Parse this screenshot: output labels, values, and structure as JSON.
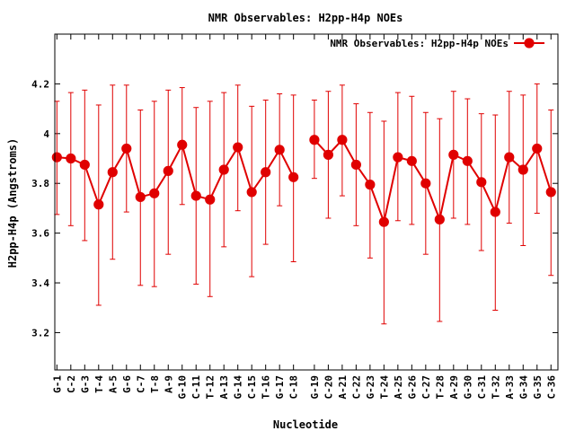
{
  "chart_data": {
    "type": "line",
    "title": "NMR Observables: H2pp-H4p NOEs",
    "xlabel": "Nucleotide",
    "ylabel": "H2pp-H4p (Angstroms)",
    "ylim": [
      3.05,
      4.4
    ],
    "yticks": [
      3.2,
      3.4,
      3.6,
      3.8,
      4,
      4.2
    ],
    "ytick_labels": [
      "3.2",
      "3.4",
      "3.6",
      "3.8",
      "4",
      "4.2"
    ],
    "xlim": [
      0.85,
      37.0
    ],
    "legend": {
      "label": "NMR Observables: H2pp-H4p NOEs",
      "position": "top-right"
    },
    "color": "#e00000",
    "series": [
      {
        "name": "NMR Observables: H2pp-H4p NOEs",
        "points": [
          {
            "x": 1,
            "label": "G-1",
            "y": 3.905,
            "lo": 3.675,
            "hi": 4.13
          },
          {
            "x": 2,
            "label": "C-2",
            "y": 3.9,
            "lo": 3.63,
            "hi": 4.165
          },
          {
            "x": 3,
            "label": "G-3",
            "y": 3.875,
            "lo": 3.57,
            "hi": 4.175
          },
          {
            "x": 4,
            "label": "T-4",
            "y": 3.715,
            "lo": 3.31,
            "hi": 4.115
          },
          {
            "x": 5,
            "label": "A-5",
            "y": 3.845,
            "lo": 3.495,
            "hi": 4.195
          },
          {
            "x": 6,
            "label": "G-6",
            "y": 3.94,
            "lo": 3.685,
            "hi": 4.195
          },
          {
            "x": 7,
            "label": "C-7",
            "y": 3.745,
            "lo": 3.39,
            "hi": 4.095
          },
          {
            "x": 8,
            "label": "T-8",
            "y": 3.76,
            "lo": 3.385,
            "hi": 4.13
          },
          {
            "x": 9,
            "label": "A-9",
            "y": 3.85,
            "lo": 3.515,
            "hi": 4.175
          },
          {
            "x": 10,
            "label": "G-10",
            "y": 3.955,
            "lo": 3.715,
            "hi": 4.185
          },
          {
            "x": 11,
            "label": "C-11",
            "y": 3.75,
            "lo": 3.395,
            "hi": 4.105
          },
          {
            "x": 12,
            "label": "T-12",
            "y": 3.735,
            "lo": 3.345,
            "hi": 4.13
          },
          {
            "x": 13,
            "label": "A-13",
            "y": 3.855,
            "lo": 3.545,
            "hi": 4.165
          },
          {
            "x": 14,
            "label": "G-14",
            "y": 3.945,
            "lo": 3.69,
            "hi": 4.195
          },
          {
            "x": 15,
            "label": "C-15",
            "y": 3.765,
            "lo": 3.425,
            "hi": 4.11
          },
          {
            "x": 16,
            "label": "T-16",
            "y": 3.845,
            "lo": 3.555,
            "hi": 4.135
          },
          {
            "x": 17,
            "label": "G-17",
            "y": 3.935,
            "lo": 3.71,
            "hi": 4.16
          },
          {
            "x": 18,
            "label": "C-18",
            "y": 3.825,
            "lo": 3.485,
            "hi": 4.155
          },
          {
            "x": 19.5,
            "label": "G-19",
            "y": 3.975,
            "lo": 3.82,
            "hi": 4.135
          },
          {
            "x": 20.5,
            "label": "C-20",
            "y": 3.915,
            "lo": 3.66,
            "hi": 4.17
          },
          {
            "x": 21.5,
            "label": "A-21",
            "y": 3.975,
            "lo": 3.75,
            "hi": 4.195
          },
          {
            "x": 22.5,
            "label": "C-22",
            "y": 3.875,
            "lo": 3.63,
            "hi": 4.12
          },
          {
            "x": 23.5,
            "label": "G-23",
            "y": 3.795,
            "lo": 3.5,
            "hi": 4.085
          },
          {
            "x": 24.5,
            "label": "T-24",
            "y": 3.645,
            "lo": 3.235,
            "hi": 4.05
          },
          {
            "x": 25.5,
            "label": "A-25",
            "y": 3.905,
            "lo": 3.65,
            "hi": 4.165
          },
          {
            "x": 26.5,
            "label": "G-26",
            "y": 3.89,
            "lo": 3.635,
            "hi": 4.15
          },
          {
            "x": 27.5,
            "label": "C-27",
            "y": 3.8,
            "lo": 3.515,
            "hi": 4.085
          },
          {
            "x": 28.5,
            "label": "T-28",
            "y": 3.655,
            "lo": 3.245,
            "hi": 4.06
          },
          {
            "x": 29.5,
            "label": "A-29",
            "y": 3.915,
            "lo": 3.66,
            "hi": 4.17
          },
          {
            "x": 30.5,
            "label": "G-30",
            "y": 3.89,
            "lo": 3.635,
            "hi": 4.14
          },
          {
            "x": 31.5,
            "label": "C-31",
            "y": 3.805,
            "lo": 3.53,
            "hi": 4.08
          },
          {
            "x": 32.5,
            "label": "T-32",
            "y": 3.685,
            "lo": 3.29,
            "hi": 4.075
          },
          {
            "x": 33.5,
            "label": "A-33",
            "y": 3.905,
            "lo": 3.64,
            "hi": 4.17
          },
          {
            "x": 34.5,
            "label": "G-34",
            "y": 3.855,
            "lo": 3.55,
            "hi": 4.155
          },
          {
            "x": 35.5,
            "label": "G-35",
            "y": 3.94,
            "lo": 3.68,
            "hi": 4.2
          },
          {
            "x": 36.5,
            "label": "C-36",
            "y": 3.765,
            "lo": 3.43,
            "hi": 4.095
          }
        ],
        "segments": [
          [
            0,
            17
          ],
          [
            18,
            35
          ]
        ]
      }
    ]
  }
}
